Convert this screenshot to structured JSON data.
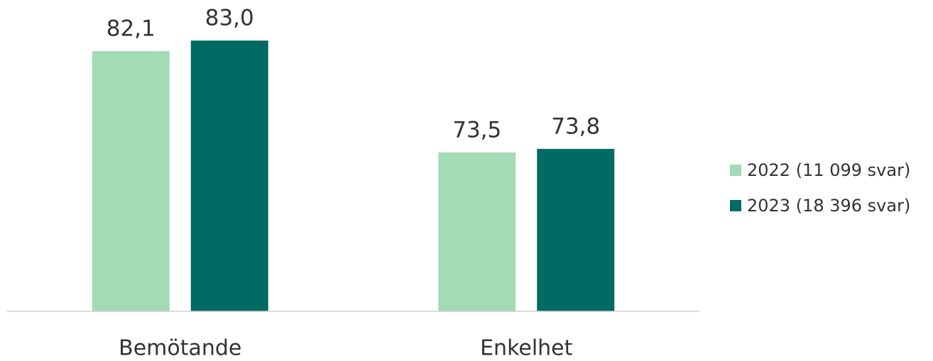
{
  "chart_data": {
    "type": "bar",
    "categories": [
      "Bemötande",
      "Enkelhet"
    ],
    "series": [
      {
        "name": "2022 (11 099 svar)",
        "color": "#a3dbb5",
        "values": [
          82.1,
          73.5
        ],
        "value_labels": [
          "82,1",
          "73,5"
        ]
      },
      {
        "name": "2023 (18 396 svar)",
        "color": "#006b62",
        "values": [
          83.0,
          73.8
        ],
        "value_labels": [
          "83,0",
          "73,8"
        ]
      }
    ],
    "ylim": [
      60,
      85
    ],
    "grid": false,
    "legend": "right"
  }
}
